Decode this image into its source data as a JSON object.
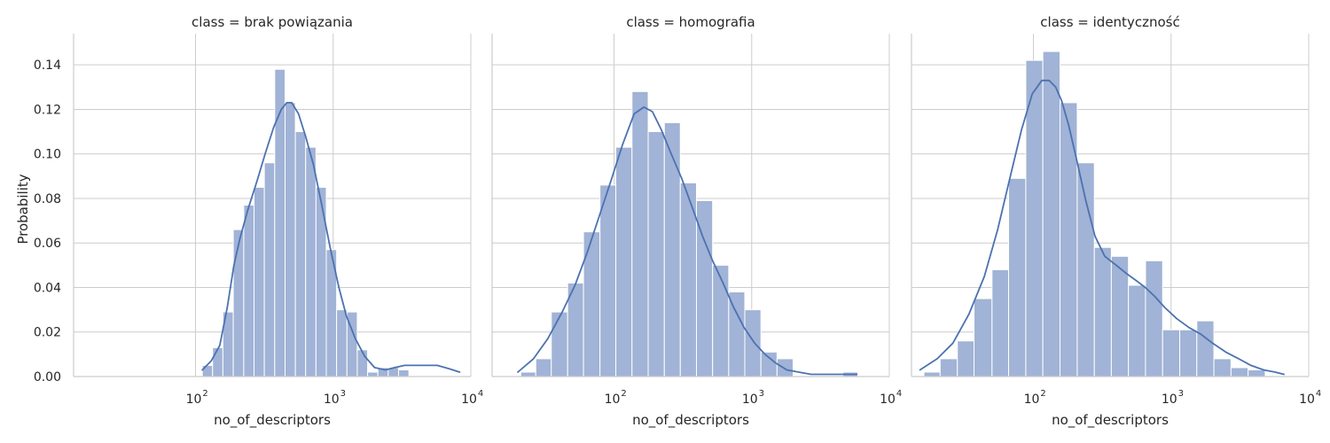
{
  "figure": {
    "ylabel": "Probability",
    "xlabel": "no_of_descriptors",
    "x_tick_labels": [
      "10",
      "10",
      "10"
    ],
    "x_tick_exponents": [
      "2",
      "3",
      "4"
    ],
    "y_tick_labels": [
      "0.00",
      "0.02",
      "0.04",
      "0.06",
      "0.08",
      "0.10",
      "0.12",
      "0.14"
    ]
  },
  "colors": {
    "bar_fill": "#a1b3d6",
    "bar_stroke": "#ffffff",
    "kde_line": "#4c72b0",
    "grid": "#cccccc",
    "text": "#262626"
  },
  "chart_data": [
    {
      "type": "bar",
      "title": "class = brak powiązania",
      "xlabel": "no_of_descriptors",
      "ylabel": "Probability",
      "xscale": "log",
      "xlim": [
        13,
        10000
      ],
      "ylim": [
        0,
        0.154
      ],
      "grid": true,
      "bins": [
        {
          "x0": 112,
          "x1": 133,
          "y": 0.005
        },
        {
          "x0": 133,
          "x1": 158,
          "y": 0.013
        },
        {
          "x0": 158,
          "x1": 188,
          "y": 0.029
        },
        {
          "x0": 188,
          "x1": 224,
          "y": 0.066
        },
        {
          "x0": 224,
          "x1": 266,
          "y": 0.077
        },
        {
          "x0": 266,
          "x1": 316,
          "y": 0.085
        },
        {
          "x0": 316,
          "x1": 376,
          "y": 0.096
        },
        {
          "x0": 376,
          "x1": 447,
          "y": 0.138
        },
        {
          "x0": 447,
          "x1": 531,
          "y": 0.123
        },
        {
          "x0": 531,
          "x1": 631,
          "y": 0.11
        },
        {
          "x0": 631,
          "x1": 750,
          "y": 0.103
        },
        {
          "x0": 750,
          "x1": 891,
          "y": 0.085
        },
        {
          "x0": 891,
          "x1": 1059,
          "y": 0.057
        },
        {
          "x0": 1059,
          "x1": 1259,
          "y": 0.03
        },
        {
          "x0": 1259,
          "x1": 1496,
          "y": 0.029
        },
        {
          "x0": 1496,
          "x1": 1778,
          "y": 0.012
        },
        {
          "x0": 1778,
          "x1": 2113,
          "y": 0.002
        },
        {
          "x0": 2113,
          "x1": 2512,
          "y": 0.004
        },
        {
          "x0": 2512,
          "x1": 2985,
          "y": 0.004
        },
        {
          "x0": 2985,
          "x1": 3548,
          "y": 0.003
        }
      ],
      "kde": {
        "x": [
          112,
          130,
          150,
          170,
          190,
          210,
          240,
          280,
          320,
          370,
          420,
          460,
          500,
          560,
          630,
          720,
          820,
          950,
          1100,
          1250,
          1450,
          1700,
          2000,
          2400,
          2800,
          3300,
          3800,
          4400,
          5000,
          5700,
          6500,
          7400,
          8300
        ],
        "y": [
          0.003,
          0.007,
          0.014,
          0.031,
          0.05,
          0.062,
          0.075,
          0.088,
          0.1,
          0.112,
          0.12,
          0.123,
          0.123,
          0.118,
          0.108,
          0.095,
          0.078,
          0.058,
          0.04,
          0.027,
          0.017,
          0.009,
          0.004,
          0.003,
          0.004,
          0.005,
          0.005,
          0.005,
          0.005,
          0.005,
          0.004,
          0.003,
          0.002
        ]
      }
    },
    {
      "type": "bar",
      "title": "class = homografia",
      "xlabel": "no_of_descriptors",
      "ylabel": "Probability",
      "xscale": "log",
      "xlim": [
        13,
        10000
      ],
      "ylim": [
        0,
        0.154
      ],
      "grid": true,
      "bins": [
        {
          "x0": 21,
          "x1": 27,
          "y": 0.002
        },
        {
          "x0": 27,
          "x1": 35,
          "y": 0.008
        },
        {
          "x0": 35,
          "x1": 46,
          "y": 0.029
        },
        {
          "x0": 46,
          "x1": 60,
          "y": 0.042
        },
        {
          "x0": 60,
          "x1": 79,
          "y": 0.065
        },
        {
          "x0": 79,
          "x1": 103,
          "y": 0.086
        },
        {
          "x0": 103,
          "x1": 135,
          "y": 0.103
        },
        {
          "x0": 135,
          "x1": 177,
          "y": 0.128
        },
        {
          "x0": 177,
          "x1": 232,
          "y": 0.11
        },
        {
          "x0": 232,
          "x1": 303,
          "y": 0.114
        },
        {
          "x0": 303,
          "x1": 397,
          "y": 0.087
        },
        {
          "x0": 397,
          "x1": 520,
          "y": 0.079
        },
        {
          "x0": 520,
          "x1": 681,
          "y": 0.05
        },
        {
          "x0": 681,
          "x1": 891,
          "y": 0.038
        },
        {
          "x0": 891,
          "x1": 1167,
          "y": 0.03
        },
        {
          "x0": 1167,
          "x1": 1528,
          "y": 0.011
        },
        {
          "x0": 1528,
          "x1": 2000,
          "y": 0.008
        },
        {
          "x0": 4600,
          "x1": 5900,
          "y": 0.002
        }
      ],
      "kde": {
        "x": [
          20,
          26,
          33,
          42,
          52,
          64,
          78,
          95,
          115,
          140,
          165,
          190,
          220,
          260,
          310,
          370,
          440,
          520,
          620,
          740,
          880,
          1050,
          1250,
          1500,
          1800,
          2200,
          2700,
          3300,
          4000,
          4800,
          5800
        ],
        "y": [
          0.002,
          0.008,
          0.017,
          0.029,
          0.041,
          0.056,
          0.072,
          0.088,
          0.104,
          0.118,
          0.121,
          0.119,
          0.111,
          0.1,
          0.089,
          0.076,
          0.063,
          0.052,
          0.042,
          0.031,
          0.022,
          0.015,
          0.01,
          0.006,
          0.003,
          0.002,
          0.001,
          0.001,
          0.001,
          0.001,
          0.001
        ]
      }
    },
    {
      "type": "bar",
      "title": "class = identyczność",
      "xlabel": "no_of_descriptors",
      "ylabel": "Probability",
      "xscale": "log",
      "xlim": [
        13,
        10000
      ],
      "ylim": [
        0,
        0.154
      ],
      "grid": true,
      "bins": [
        {
          "x0": 16,
          "x1": 21,
          "y": 0.002
        },
        {
          "x0": 21,
          "x1": 28,
          "y": 0.008
        },
        {
          "x0": 28,
          "x1": 37,
          "y": 0.016
        },
        {
          "x0": 37,
          "x1": 50,
          "y": 0.035
        },
        {
          "x0": 50,
          "x1": 66,
          "y": 0.048
        },
        {
          "x0": 66,
          "x1": 88,
          "y": 0.089
        },
        {
          "x0": 88,
          "x1": 117,
          "y": 0.142
        },
        {
          "x0": 117,
          "x1": 156,
          "y": 0.146
        },
        {
          "x0": 156,
          "x1": 208,
          "y": 0.123
        },
        {
          "x0": 208,
          "x1": 277,
          "y": 0.096
        },
        {
          "x0": 277,
          "x1": 368,
          "y": 0.058
        },
        {
          "x0": 368,
          "x1": 490,
          "y": 0.054
        },
        {
          "x0": 490,
          "x1": 652,
          "y": 0.041
        },
        {
          "x0": 652,
          "x1": 868,
          "y": 0.052
        },
        {
          "x0": 868,
          "x1": 1156,
          "y": 0.021
        },
        {
          "x0": 1156,
          "x1": 1538,
          "y": 0.021
        },
        {
          "x0": 1538,
          "x1": 2047,
          "y": 0.025
        },
        {
          "x0": 2047,
          "x1": 2725,
          "y": 0.008
        },
        {
          "x0": 2725,
          "x1": 3628,
          "y": 0.004
        },
        {
          "x0": 3628,
          "x1": 4829,
          "y": 0.003
        }
      ],
      "kde": {
        "x": [
          15,
          20,
          26,
          34,
          44,
          55,
          68,
          82,
          98,
          115,
          130,
          145,
          160,
          180,
          205,
          240,
          280,
          330,
          400,
          480,
          560,
          650,
          760,
          900,
          1100,
          1350,
          1650,
          2000,
          2500,
          3100,
          3800,
          4700,
          5700,
          6600
        ],
        "y": [
          0.003,
          0.008,
          0.015,
          0.028,
          0.045,
          0.066,
          0.09,
          0.111,
          0.127,
          0.133,
          0.133,
          0.13,
          0.124,
          0.113,
          0.098,
          0.079,
          0.063,
          0.054,
          0.05,
          0.046,
          0.043,
          0.04,
          0.036,
          0.031,
          0.026,
          0.022,
          0.019,
          0.015,
          0.011,
          0.008,
          0.005,
          0.003,
          0.002,
          0.001
        ]
      }
    }
  ]
}
